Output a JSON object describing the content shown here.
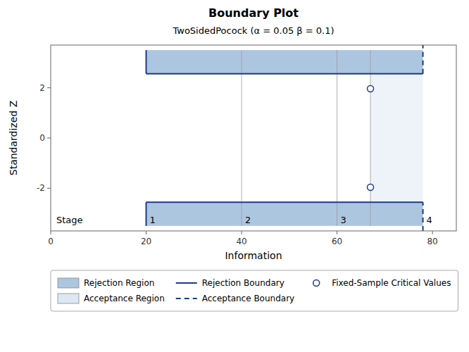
{
  "chart_data": {
    "type": "boundary",
    "title": "Boundary Plot",
    "subtitle": "TwoSidedPocock (α = 0.05  β = 0.1)",
    "x_label": "Information",
    "y_label": "Standardized Z",
    "xlim": [
      0,
      85
    ],
    "ylim": [
      -3.7,
      3.7
    ],
    "xticks": [
      0,
      20,
      40,
      60,
      80
    ],
    "yticks": [
      -2,
      0,
      2
    ],
    "stage_title": "Stage",
    "stages": {
      "x": [
        20,
        40,
        60,
        78
      ],
      "labels": [
        "1",
        "2",
        "3",
        "4"
      ]
    },
    "region_ylim": [
      -3.5,
      3.5
    ],
    "series": [
      {
        "name": "Rejection Region",
        "type": "area",
        "color": "#adc6e0"
      },
      {
        "name": "Acceptance Region",
        "type": "area",
        "color": "#dce8f3"
      },
      {
        "name": "Rejection Boundary",
        "type": "line",
        "color": "#1a3a8a",
        "line_style": "solid",
        "values": [
          2.56,
          -2.56
        ]
      },
      {
        "name": "Acceptance Boundary",
        "type": "line",
        "color": "#1a3a8a",
        "line_style": "dashed"
      },
      {
        "name": "Fixed-Sample Critical Values",
        "type": "scatter",
        "color": "#1a3a8a",
        "marker": "circle",
        "x": [
          67,
          67
        ],
        "values": [
          1.96,
          -1.96
        ]
      }
    ]
  }
}
